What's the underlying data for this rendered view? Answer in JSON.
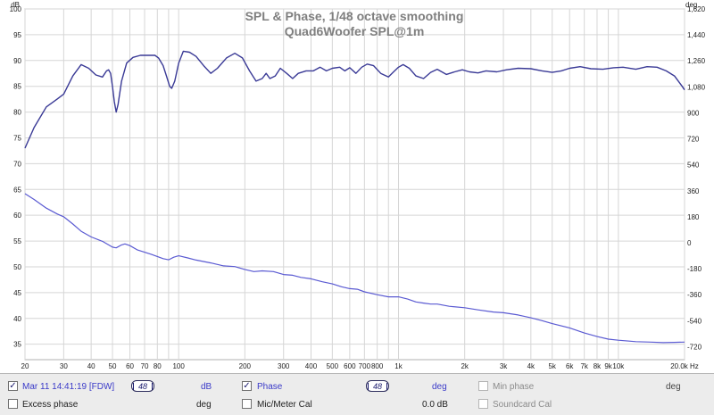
{
  "chart_data": {
    "type": "line",
    "title": "SPL & Phase, 1/48 octave smoothing",
    "subtitle": "Quad6Woofer SPL@1m",
    "x_scale": "log",
    "xlim": [
      20,
      20000
    ],
    "x_tick_values": [
      20,
      30,
      40,
      50,
      60,
      70,
      80,
      100,
      200,
      300,
      400,
      500,
      600,
      700,
      800,
      1000,
      2000,
      3000,
      4000,
      5000,
      6000,
      7000,
      8000,
      9000,
      10000,
      20000
    ],
    "x_tick_labels": [
      "20",
      "30",
      "40",
      "50",
      "60",
      "70",
      "80",
      "100",
      "200",
      "300",
      "400",
      "500",
      "600",
      "700",
      "800",
      "1k",
      "2k",
      "3k",
      "4k",
      "5k",
      "6k",
      "7k",
      "8k",
      "9k",
      "10k",
      "20.0k Hz"
    ],
    "y_left": {
      "unit": "dB",
      "lim": [
        32,
        100
      ],
      "ticks": [
        35,
        40,
        45,
        50,
        55,
        60,
        65,
        70,
        75,
        80,
        85,
        90,
        95,
        100
      ],
      "tick_labels": [
        "35",
        "40",
        "45",
        "50",
        "55",
        "60",
        "65",
        "70",
        "75",
        "80",
        "85",
        "90",
        "95",
        "100"
      ]
    },
    "y_right": {
      "unit": "deg",
      "lim": [
        -810,
        1620
      ],
      "ticks": [
        -720,
        -540,
        -360,
        -180,
        0,
        180,
        360,
        540,
        720,
        900,
        1080,
        1260,
        1440,
        1620
      ],
      "tick_labels": [
        "-720",
        "-540",
        "-360",
        "-180",
        "0",
        "180",
        "360",
        "540",
        "720",
        "900",
        "1,080",
        "1,260",
        "1,440",
        "1,620"
      ]
    },
    "grid": true,
    "series": [
      {
        "axis": "left",
        "color": "#3a3a96",
        "points": [
          [
            20,
            73
          ],
          [
            22,
            77
          ],
          [
            25,
            81
          ],
          [
            28,
            82.5
          ],
          [
            30,
            83.5
          ],
          [
            33,
            87
          ],
          [
            36,
            89.2
          ],
          [
            39,
            88.5
          ],
          [
            42,
            87.2
          ],
          [
            45,
            86.8
          ],
          [
            47,
            88
          ],
          [
            48,
            88.2
          ],
          [
            49,
            87.5
          ],
          [
            50,
            85
          ],
          [
            51,
            82
          ],
          [
            52,
            80
          ],
          [
            53,
            81.5
          ],
          [
            55,
            86
          ],
          [
            58,
            89.5
          ],
          [
            62,
            90.6
          ],
          [
            67,
            91
          ],
          [
            73,
            91
          ],
          [
            78,
            91
          ],
          [
            81,
            90.5
          ],
          [
            85,
            89
          ],
          [
            88,
            87
          ],
          [
            91,
            85
          ],
          [
            93,
            84.6
          ],
          [
            96,
            86
          ],
          [
            100,
            89.5
          ],
          [
            105,
            91.8
          ],
          [
            112,
            91.6
          ],
          [
            120,
            90.8
          ],
          [
            130,
            89
          ],
          [
            140,
            87.5
          ],
          [
            150,
            88.5
          ],
          [
            165,
            90.5
          ],
          [
            180,
            91.4
          ],
          [
            195,
            90.5
          ],
          [
            210,
            88
          ],
          [
            225,
            86
          ],
          [
            240,
            86.5
          ],
          [
            250,
            87.5
          ],
          [
            260,
            86.5
          ],
          [
            275,
            87
          ],
          [
            290,
            88.5
          ],
          [
            310,
            87.5
          ],
          [
            330,
            86.5
          ],
          [
            350,
            87.5
          ],
          [
            380,
            88
          ],
          [
            410,
            88
          ],
          [
            440,
            88.7
          ],
          [
            470,
            88
          ],
          [
            500,
            88.5
          ],
          [
            540,
            88.7
          ],
          [
            570,
            88
          ],
          [
            600,
            88.6
          ],
          [
            640,
            87.5
          ],
          [
            680,
            88.7
          ],
          [
            720,
            89.3
          ],
          [
            770,
            89
          ],
          [
            830,
            87.5
          ],
          [
            900,
            86.8
          ],
          [
            950,
            87.8
          ],
          [
            1000,
            88.7
          ],
          [
            1050,
            89.2
          ],
          [
            1120,
            88.5
          ],
          [
            1200,
            87
          ],
          [
            1300,
            86.5
          ],
          [
            1400,
            87.7
          ],
          [
            1500,
            88.3
          ],
          [
            1650,
            87.3
          ],
          [
            1800,
            87.8
          ],
          [
            1950,
            88.2
          ],
          [
            2100,
            87.8
          ],
          [
            2300,
            87.6
          ],
          [
            2500,
            88
          ],
          [
            2800,
            87.8
          ],
          [
            3100,
            88.2
          ],
          [
            3500,
            88.5
          ],
          [
            4000,
            88.4
          ],
          [
            4500,
            88
          ],
          [
            5000,
            87.7
          ],
          [
            5500,
            88
          ],
          [
            6000,
            88.5
          ],
          [
            6700,
            88.8
          ],
          [
            7500,
            88.4
          ],
          [
            8500,
            88.3
          ],
          [
            9500,
            88.6
          ],
          [
            10500,
            88.7
          ],
          [
            12000,
            88.3
          ],
          [
            13500,
            88.8
          ],
          [
            15000,
            88.7
          ],
          [
            16500,
            88
          ],
          [
            18000,
            87
          ],
          [
            19500,
            85
          ],
          [
            20000,
            84.3
          ]
        ]
      },
      {
        "axis": "right",
        "color": "#5a5ad2",
        "points": [
          [
            20,
            340
          ],
          [
            22,
            300
          ],
          [
            25,
            240
          ],
          [
            28,
            200
          ],
          [
            30,
            180
          ],
          [
            33,
            130
          ],
          [
            36,
            80
          ],
          [
            40,
            40
          ],
          [
            45,
            10
          ],
          [
            50,
            -30
          ],
          [
            52,
            -35
          ],
          [
            55,
            -15
          ],
          [
            57,
            -8
          ],
          [
            60,
            -20
          ],
          [
            65,
            -50
          ],
          [
            75,
            -80
          ],
          [
            85,
            -110
          ],
          [
            90,
            -118
          ],
          [
            95,
            -100
          ],
          [
            100,
            -90
          ],
          [
            110,
            -105
          ],
          [
            120,
            -120
          ],
          [
            140,
            -140
          ],
          [
            160,
            -160
          ],
          [
            180,
            -165
          ],
          [
            200,
            -185
          ],
          [
            220,
            -200
          ],
          [
            240,
            -195
          ],
          [
            270,
            -200
          ],
          [
            300,
            -220
          ],
          [
            330,
            -225
          ],
          [
            360,
            -240
          ],
          [
            400,
            -250
          ],
          [
            450,
            -270
          ],
          [
            500,
            -285
          ],
          [
            550,
            -305
          ],
          [
            600,
            -318
          ],
          [
            650,
            -322
          ],
          [
            700,
            -340
          ],
          [
            800,
            -360
          ],
          [
            900,
            -375
          ],
          [
            1000,
            -375
          ],
          [
            1100,
            -390
          ],
          [
            1200,
            -410
          ],
          [
            1300,
            -418
          ],
          [
            1400,
            -425
          ],
          [
            1500,
            -425
          ],
          [
            1700,
            -440
          ],
          [
            2000,
            -450
          ],
          [
            2300,
            -465
          ],
          [
            2700,
            -480
          ],
          [
            3000,
            -485
          ],
          [
            3500,
            -500
          ],
          [
            4000,
            -520
          ],
          [
            4500,
            -540
          ],
          [
            5000,
            -560
          ],
          [
            6000,
            -590
          ],
          [
            7000,
            -625
          ],
          [
            8000,
            -650
          ],
          [
            9000,
            -668
          ],
          [
            10000,
            -675
          ],
          [
            12000,
            -685
          ],
          [
            14000,
            -688
          ],
          [
            16000,
            -692
          ],
          [
            18000,
            -690
          ],
          [
            20000,
            -688
          ]
        ]
      }
    ]
  },
  "legend": {
    "row1": {
      "measurement_label": "Mar 11 14:41:19 [FDW]",
      "smoothing_label": "48",
      "unit_db": "dB",
      "phase_label": "Phase",
      "phase_smoothing_label": "48",
      "unit_deg": "deg",
      "min_phase_label": "Min phase",
      "min_phase_unit": "deg"
    },
    "row2": {
      "excess_phase_label": "Excess phase",
      "excess_phase_unit": "deg",
      "mic_cal_label": "Mic/Meter Cal",
      "mic_cal_value": "0.0 dB",
      "soundcard_cal_label": "Soundcard Cal"
    }
  }
}
